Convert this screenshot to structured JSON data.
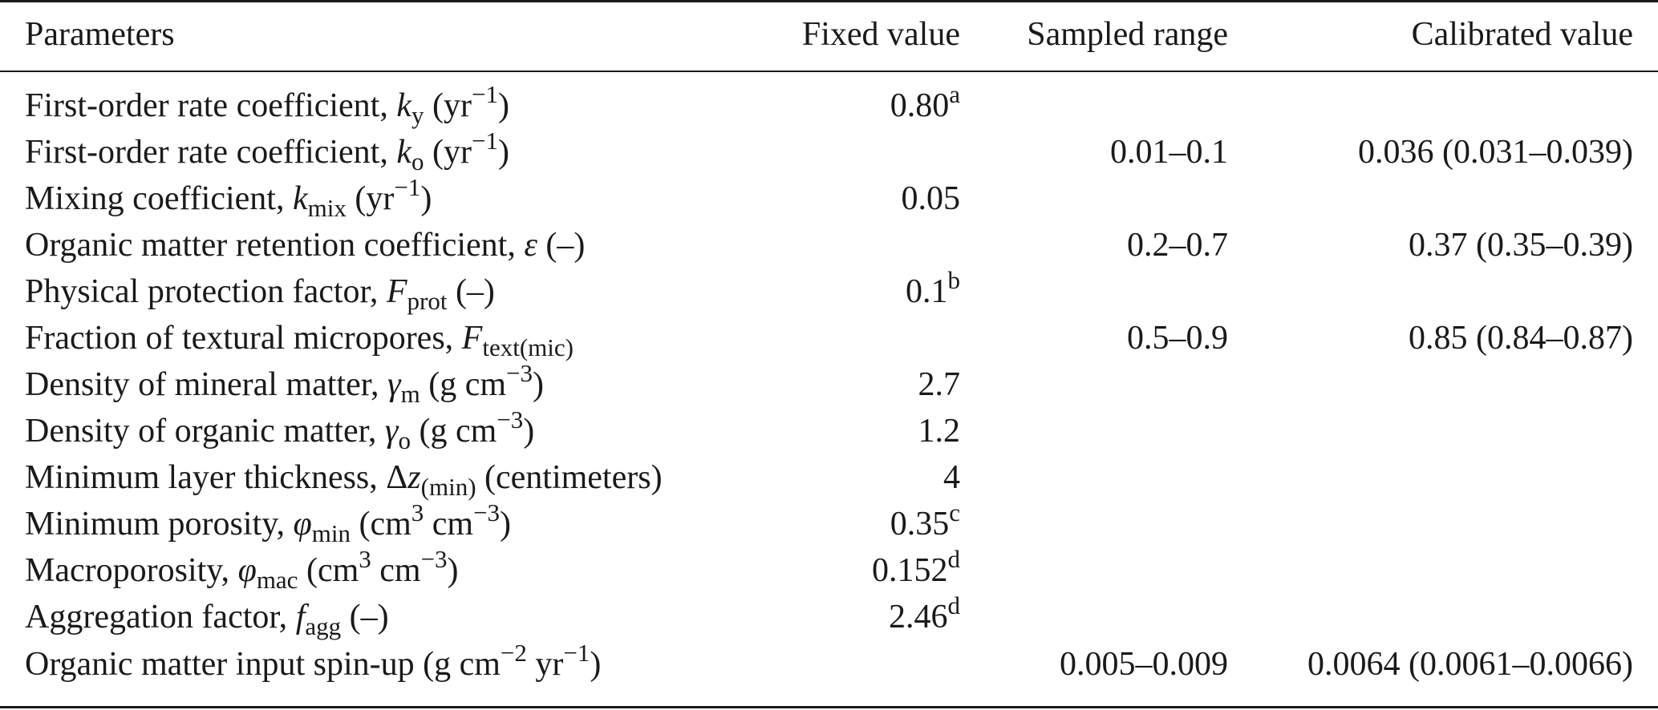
{
  "headers": {
    "parameters": "Parameters",
    "fixed_value": "Fixed value",
    "sampled_range": "Sampled range",
    "calibrated_value": "Calibrated value"
  },
  "rows": [
    {
      "param": {
        "prefix": "First-order rate coefficient, ",
        "symbol": "k",
        "sub": "y",
        "mid": " (yr",
        "sup": "−1",
        "suffix": ")"
      },
      "fixed": "0.80",
      "fixed_note": "a",
      "range": "",
      "calibrated": ""
    },
    {
      "param": {
        "prefix": "First-order rate coefficient, ",
        "symbol": "k",
        "sub": "o",
        "mid": " (yr",
        "sup": "−1",
        "suffix": ")"
      },
      "fixed": "",
      "fixed_note": "",
      "range": "0.01–0.1",
      "calibrated": "0.036 (0.031–0.039)"
    },
    {
      "param": {
        "prefix": "Mixing coefficient, ",
        "symbol": "k",
        "sub": "mix",
        "mid": " (yr",
        "sup": "−1",
        "suffix": ")"
      },
      "fixed": "0.05",
      "fixed_note": "",
      "range": "",
      "calibrated": ""
    },
    {
      "param": {
        "prefix": "Organic matter retention coefficient, ",
        "symbol": "ε",
        "sub": "",
        "mid": " (–)",
        "sup": "",
        "suffix": ""
      },
      "fixed": "",
      "fixed_note": "",
      "range": "0.2–0.7",
      "calibrated": "0.37 (0.35–0.39)"
    },
    {
      "param": {
        "prefix": "Physical protection factor, ",
        "symbol": "F",
        "sub": "prot",
        "mid": " (–)",
        "sup": "",
        "suffix": ""
      },
      "fixed": "0.1",
      "fixed_note": "b",
      "range": "",
      "calibrated": ""
    },
    {
      "param": {
        "prefix": "Fraction of textural micropores, ",
        "symbol": "F",
        "sub": "text(mic)",
        "mid": "",
        "sup": "",
        "suffix": ""
      },
      "fixed": "",
      "fixed_note": "",
      "range": "0.5–0.9",
      "calibrated": "0.85 (0.84–0.87)"
    },
    {
      "param": {
        "prefix": "Density of mineral matter, ",
        "symbol": "γ",
        "sub": "m",
        "mid": " (g cm",
        "sup": "−3",
        "suffix": ")"
      },
      "fixed": "2.7",
      "fixed_note": "",
      "range": "",
      "calibrated": ""
    },
    {
      "param": {
        "prefix": "Density of organic matter, ",
        "symbol": "γ",
        "sub": "o",
        "mid": " (g cm",
        "sup": "−3",
        "suffix": ")"
      },
      "fixed": "1.2",
      "fixed_note": "",
      "range": "",
      "calibrated": ""
    },
    {
      "param": {
        "prefix": "Minimum layer thickness, Δ",
        "symbol": "z",
        "sub": "(min)",
        "mid": " (centimeters)",
        "sup": "",
        "suffix": ""
      },
      "fixed": "4",
      "fixed_note": "",
      "range": "",
      "calibrated": ""
    },
    {
      "param": {
        "prefix": "Minimum porosity, ",
        "symbol": "φ",
        "sub": "min",
        "mid": " (cm",
        "sup": "3",
        "suffix": " cm",
        "sup2": "−3",
        "suffix2": ")"
      },
      "fixed": "0.35",
      "fixed_note": "c",
      "range": "",
      "calibrated": ""
    },
    {
      "param": {
        "prefix": "Macroporosity, ",
        "symbol": "φ",
        "sub": "mac",
        "mid": " (cm",
        "sup": "3",
        "suffix": " cm",
        "sup2": "−3",
        "suffix2": ")"
      },
      "fixed": "0.152",
      "fixed_note": "d",
      "range": "",
      "calibrated": ""
    },
    {
      "param": {
        "prefix": "Aggregation factor, ",
        "symbol": "f",
        "sub": "agg",
        "mid": " (–)",
        "sup": "",
        "suffix": ""
      },
      "fixed": "2.46",
      "fixed_note": "d",
      "range": "",
      "calibrated": ""
    },
    {
      "param": {
        "prefix": "Organic matter input spin-up (g cm",
        "symbol": "",
        "sub": "",
        "mid": "",
        "sup": "−2",
        "suffix": " yr",
        "sup2": "−1",
        "suffix2": ")"
      },
      "fixed": "",
      "fixed_note": "",
      "range": "0.005–0.009",
      "calibrated": "0.0064 (0.0061–0.0066)"
    }
  ]
}
